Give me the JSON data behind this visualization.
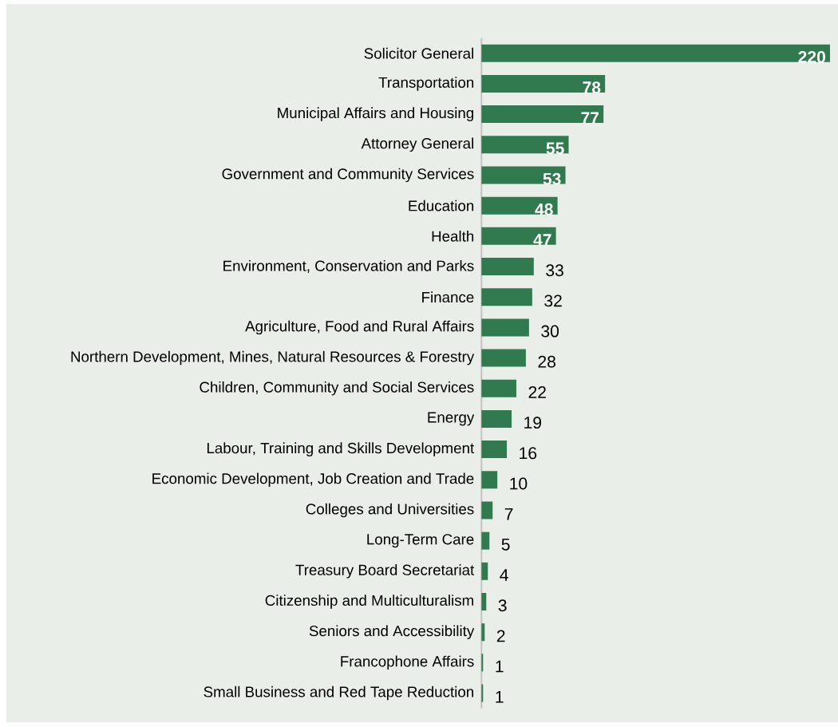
{
  "chart_data": {
    "type": "bar",
    "orientation": "horizontal",
    "data_labels": true,
    "color": "#317a4f",
    "categories": [
      "Solicitor General",
      "Transportation",
      "Municipal Affairs and Housing",
      "Attorney General",
      "Government and Community Services",
      "Education",
      "Health",
      "Environment, Conservation and Parks",
      "Finance",
      "Agriculture, Food and Rural Affairs",
      "Northern Development, Mines, Natural Resources & Forestry",
      "Children, Community and Social Services",
      "Energy",
      "Labour, Training and Skills Development",
      "Economic Development, Job Creation and Trade",
      "Colleges and Universities",
      "Long-Term Care",
      "Treasury Board Secretariat",
      "Citizenship and Multiculturalism",
      "Seniors and Accessibility",
      "Francophone Affairs",
      "Small Business and Red Tape Reduction"
    ],
    "values": [
      220,
      78,
      77,
      55,
      53,
      48,
      47,
      33,
      32,
      30,
      28,
      22,
      19,
      16,
      10,
      7,
      5,
      4,
      3,
      2,
      1,
      1
    ]
  }
}
